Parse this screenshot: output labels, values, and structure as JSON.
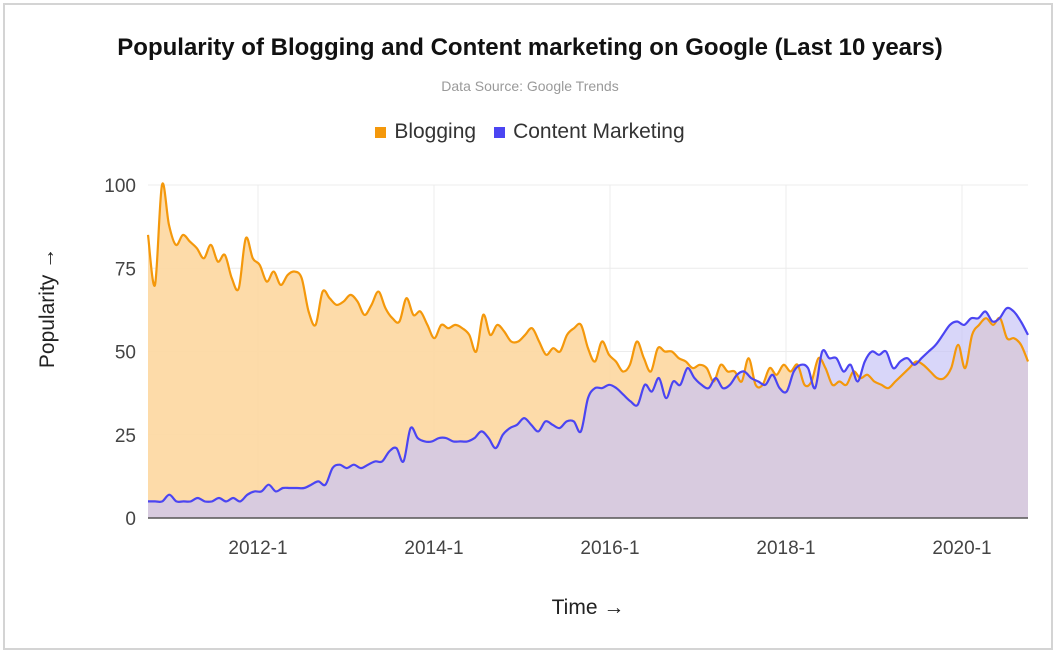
{
  "chart_data": {
    "type": "area",
    "title": "Popularity of Blogging and Content marketing on Google (Last 10 years)",
    "subtitle": "Data Source: Google Trends",
    "xlabel": "Time →",
    "ylabel": "Popularity →",
    "ylim": [
      0,
      100
    ],
    "yticks": [
      "0",
      "25",
      "50",
      "75",
      "100"
    ],
    "xticks": [
      "2012-1",
      "2014-1",
      "2016-1",
      "2018-1",
      "2020-1"
    ],
    "x_start": "2010-10",
    "x_end": "2020-10",
    "legend_position": "top-center",
    "grid": true,
    "series": [
      {
        "name": "Blogging",
        "color": "#f4980b",
        "fill": "#fdd9a4",
        "values": [
          85,
          70,
          100,
          88,
          82,
          85,
          83,
          81,
          78,
          82,
          77,
          79,
          72,
          69,
          84,
          78,
          76,
          71,
          74,
          70,
          73,
          74,
          72,
          62,
          58,
          68,
          66,
          64,
          65,
          67,
          65,
          61,
          64,
          68,
          63,
          60,
          59,
          66,
          61,
          62,
          58,
          54,
          58,
          57,
          58,
          57,
          55,
          50,
          61,
          55,
          58,
          56,
          53,
          53,
          55,
          57,
          53,
          49,
          51,
          50,
          55,
          57,
          58,
          51,
          47,
          53,
          49,
          47,
          44,
          46,
          53,
          48,
          44,
          51,
          50,
          50,
          48,
          47,
          45,
          46,
          45,
          41,
          46,
          44,
          44,
          41,
          48,
          40,
          40,
          45,
          43,
          46,
          44,
          46,
          40,
          41,
          48,
          45,
          40,
          41,
          40,
          44,
          42,
          43,
          41,
          40,
          39,
          41,
          43,
          45,
          47,
          46,
          44,
          42,
          42,
          45,
          52,
          45,
          55,
          58,
          60,
          58,
          60,
          54,
          54,
          52,
          47
        ]
      },
      {
        "name": "Content Marketing",
        "color": "#4b45f2",
        "fill": "#c7c5f7",
        "values": [
          5,
          5,
          5,
          7,
          5,
          5,
          5,
          6,
          5,
          5,
          6,
          5,
          6,
          5,
          7,
          8,
          8,
          10,
          8,
          9,
          9,
          9,
          9,
          10,
          11,
          10,
          15,
          16,
          15,
          16,
          15,
          16,
          17,
          17,
          20,
          21,
          17,
          27,
          24,
          23,
          23,
          24,
          24,
          23,
          23,
          23,
          24,
          26,
          24,
          21,
          25,
          27,
          28,
          30,
          28,
          26,
          29,
          28,
          27,
          29,
          29,
          26,
          36,
          39,
          39,
          40,
          39,
          37,
          35,
          34,
          40,
          38,
          42,
          36,
          41,
          40,
          45,
          42,
          40,
          39,
          42,
          39,
          40,
          43,
          44,
          42,
          41,
          40,
          43,
          39,
          38,
          44,
          46,
          45,
          39,
          50,
          48,
          48,
          44,
          46,
          41,
          47,
          50,
          49,
          50,
          45,
          47,
          48,
          46,
          48,
          50,
          52,
          55,
          58,
          59,
          58,
          60,
          60,
          62,
          59,
          60,
          63,
          62,
          59,
          55
        ]
      }
    ]
  }
}
